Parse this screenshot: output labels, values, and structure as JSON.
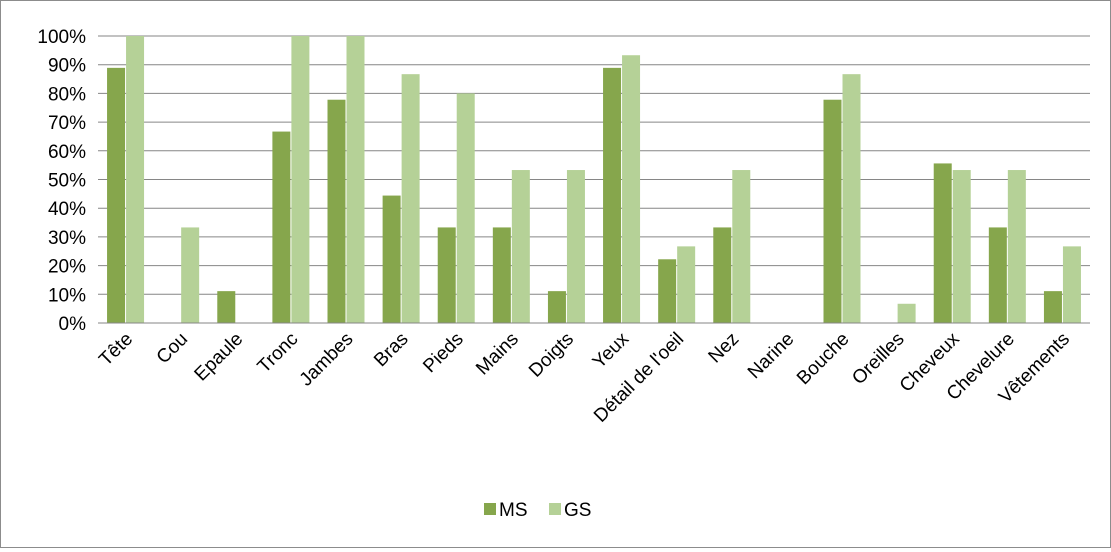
{
  "chart_data": {
    "type": "bar",
    "categories": [
      "Tête",
      "Cou",
      "Epaule",
      "Tronc",
      "Jambes",
      "Bras",
      "Pieds",
      "Mains",
      "Doigts",
      "Yeux",
      "Détail de l'oeil",
      "Nez",
      "Narine",
      "Bouche",
      "Oreilles",
      "Cheveux",
      "Chevelure",
      "Vêtements"
    ],
    "series": [
      {
        "name": "MS",
        "color": "#86a64c",
        "values": [
          0.889,
          0,
          0.111,
          0.667,
          0.778,
          0.444,
          0.333,
          0.333,
          0.111,
          0.889,
          0.222,
          0.333,
          0,
          0.778,
          0,
          0.556,
          0.333,
          0.111
        ]
      },
      {
        "name": "GS",
        "color": "#b5d197",
        "values": [
          1.0,
          0.333,
          0,
          1.0,
          1.0,
          0.867,
          0.8,
          0.533,
          0.533,
          0.933,
          0.267,
          0.533,
          0,
          0.867,
          0.067,
          0.533,
          0.533,
          0.267
        ]
      }
    ],
    "ylim": [
      0,
      1
    ],
    "yticks": [
      "0%",
      "10%",
      "20%",
      "30%",
      "40%",
      "50%",
      "60%",
      "70%",
      "80%",
      "90%",
      "100%"
    ],
    "grid": true,
    "legend_position": "bottom",
    "title": "",
    "xlabel": "",
    "ylabel": ""
  }
}
